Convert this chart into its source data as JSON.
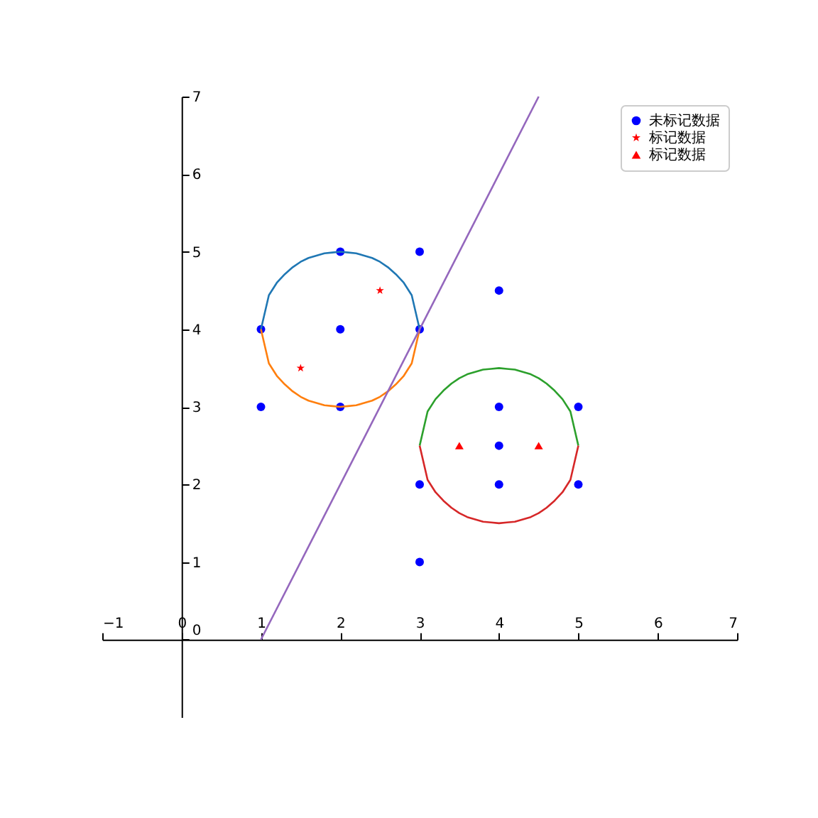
{
  "chart_data": {
    "type": "scatter",
    "xlim": [
      -1,
      7
    ],
    "ylim": [
      -1,
      7
    ],
    "xticks": [
      {
        "value": -1,
        "label": "−1"
      },
      0,
      1,
      2,
      3,
      4,
      5,
      6,
      7
    ],
    "yticks": [
      0,
      1,
      2,
      3,
      4,
      5,
      6,
      7
    ],
    "legend": "top right",
    "series": [
      {
        "name": "未标记数据",
        "color": "#0000ff",
        "marker": "circle",
        "x": [
          1,
          2,
          2,
          2,
          1,
          3,
          3,
          4,
          3,
          3,
          4,
          4,
          4,
          5,
          5
        ],
        "values": [
          4,
          5,
          4,
          3,
          3,
          5,
          4,
          4.5,
          2,
          1,
          3,
          2.5,
          2,
          3,
          2
        ]
      },
      {
        "name": "标记数据",
        "color": "#ff0000",
        "marker": "star",
        "x": [
          2.5,
          1.5
        ],
        "values": [
          4.5,
          3.5
        ]
      },
      {
        "name": "标记数据",
        "color": "#ff0000",
        "marker": "triangle",
        "x": [
          3.5,
          4.5
        ],
        "values": [
          2.5,
          2.5
        ]
      },
      {
        "type": "line",
        "color": "#1f77b4",
        "x": [
          1,
          1.1,
          1.2,
          1.3,
          1.4,
          1.5,
          1.6,
          1.7,
          1.8,
          1.9,
          2,
          2.1,
          2.2,
          2.3,
          2.4,
          2.5,
          2.6,
          2.7,
          2.8,
          2.9,
          3
        ],
        "values": [
          4,
          4.44,
          4.6,
          4.71,
          4.8,
          4.87,
          4.92,
          4.95,
          4.98,
          4.99,
          5,
          4.99,
          4.98,
          4.95,
          4.92,
          4.87,
          4.8,
          4.71,
          4.6,
          4.44,
          4
        ]
      },
      {
        "type": "line",
        "color": "#ff7f0e",
        "x": [
          1,
          1.1,
          1.2,
          1.3,
          1.4,
          1.5,
          1.6,
          1.7,
          1.8,
          1.9,
          2,
          2.1,
          2.2,
          2.3,
          2.4,
          2.5,
          2.6,
          2.7,
          2.8,
          2.9,
          3
        ],
        "values": [
          4,
          3.56,
          3.4,
          3.29,
          3.2,
          3.13,
          3.08,
          3.05,
          3.02,
          3.01,
          3,
          3.01,
          3.02,
          3.05,
          3.08,
          3.13,
          3.2,
          3.29,
          3.4,
          3.56,
          4
        ]
      },
      {
        "type": "line",
        "color": "#2ca02c",
        "x": [
          3,
          3.1,
          3.2,
          3.3,
          3.4,
          3.5,
          3.6,
          3.7,
          3.8,
          3.9,
          4,
          4.1,
          4.2,
          4.3,
          4.4,
          4.5,
          4.6,
          4.7,
          4.8,
          4.9,
          5
        ],
        "values": [
          2.5,
          2.94,
          3.1,
          3.21,
          3.3,
          3.37,
          3.42,
          3.45,
          3.48,
          3.49,
          3.5,
          3.49,
          3.48,
          3.45,
          3.42,
          3.37,
          3.3,
          3.21,
          3.1,
          2.94,
          2.5
        ]
      },
      {
        "type": "line",
        "color": "#d62728",
        "x": [
          3,
          3.1,
          3.2,
          3.3,
          3.4,
          3.5,
          3.6,
          3.7,
          3.8,
          3.9,
          4,
          4.1,
          4.2,
          4.3,
          4.4,
          4.5,
          4.6,
          4.7,
          4.8,
          4.9,
          5
        ],
        "values": [
          2.5,
          2.06,
          1.9,
          1.79,
          1.7,
          1.63,
          1.58,
          1.55,
          1.52,
          1.51,
          1.5,
          1.51,
          1.52,
          1.55,
          1.58,
          1.63,
          1.7,
          1.79,
          1.9,
          2.06,
          2.5
        ]
      },
      {
        "type": "line",
        "color": "#9467bd",
        "x": [
          1,
          4.5
        ],
        "values": [
          0,
          7
        ]
      }
    ]
  }
}
